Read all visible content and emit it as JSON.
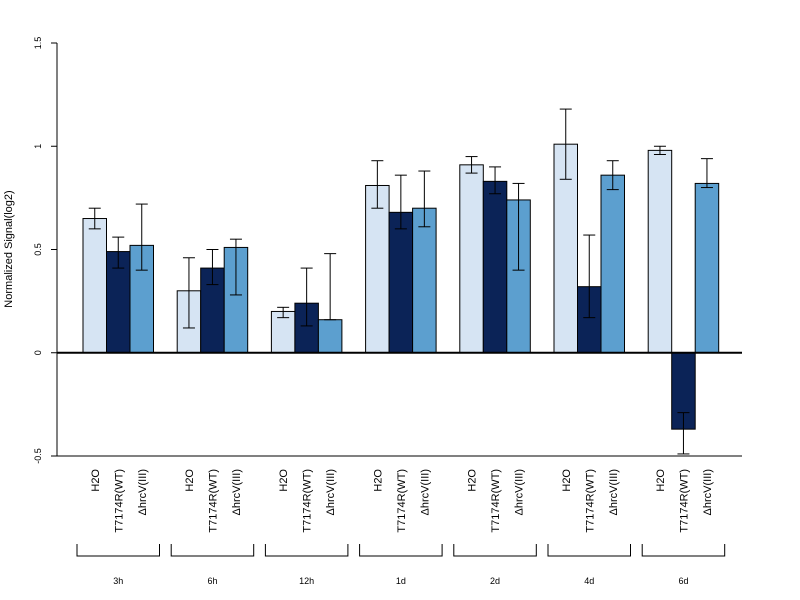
{
  "chart_data": {
    "type": "bar",
    "ylabel": "Normalized Signal(log2)",
    "ylim": [
      -0.5,
      1.5
    ],
    "yticks": [
      "-0.5",
      "0",
      "0.5",
      "1",
      "1.5"
    ],
    "groups": [
      "3h",
      "6h",
      "12h",
      "1d",
      "2d",
      "4d",
      "6d"
    ],
    "series": [
      {
        "name": "H2O",
        "color": "#d6e4f3",
        "values": [
          0.65,
          0.3,
          0.2,
          0.81,
          0.91,
          1.01,
          0.98
        ],
        "err_low": [
          0.6,
          0.12,
          0.17,
          0.7,
          0.87,
          0.84,
          0.96
        ],
        "err_high": [
          0.7,
          0.46,
          0.22,
          0.93,
          0.95,
          1.18,
          1.0
        ]
      },
      {
        "name": "T7174R(WT)",
        "color": "#0b2357",
        "values": [
          0.49,
          0.41,
          0.24,
          0.68,
          0.83,
          0.32,
          -0.37
        ],
        "err_low": [
          0.41,
          0.33,
          0.13,
          0.6,
          0.77,
          0.17,
          -0.49
        ],
        "err_high": [
          0.56,
          0.5,
          0.41,
          0.86,
          0.9,
          0.57,
          -0.29
        ]
      },
      {
        "name": "ΔhrcV(III)",
        "color": "#5c9fcf",
        "values": [
          0.52,
          0.51,
          0.16,
          0.7,
          0.74,
          0.86,
          0.82
        ],
        "err_low": [
          0.4,
          0.28,
          0.16,
          0.61,
          0.4,
          0.79,
          0.8
        ],
        "err_high": [
          0.72,
          0.55,
          0.48,
          0.88,
          0.82,
          0.93,
          0.94
        ]
      }
    ],
    "zero_line": true,
    "grid": false,
    "legend": "none"
  }
}
